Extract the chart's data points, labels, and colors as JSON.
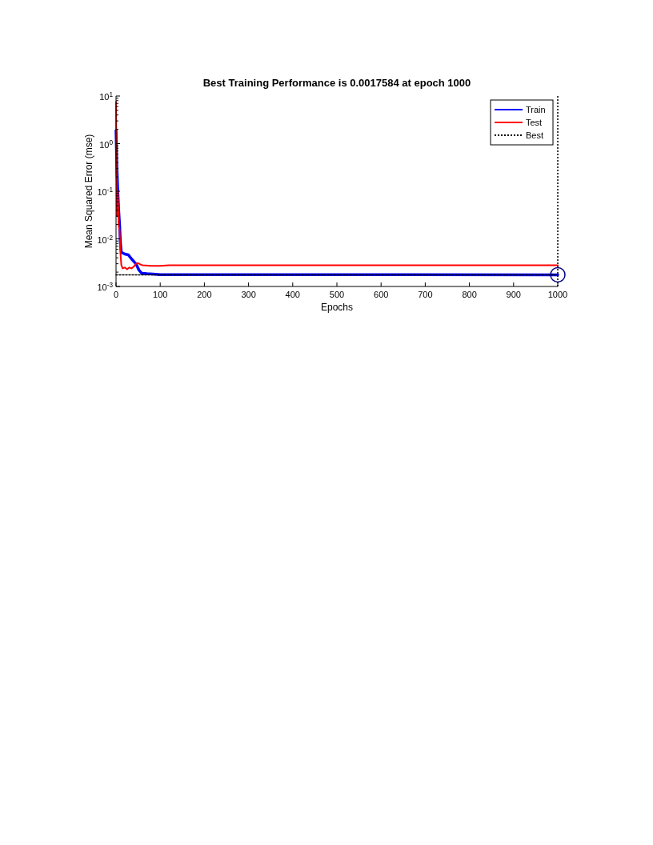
{
  "chart_data": {
    "type": "line",
    "title": "Best Training Performance is 0.0017584 at epoch 1000",
    "xlabel": "Epochs",
    "ylabel": "Mean Squared Error  (mse)",
    "xlim": [
      0,
      1000
    ],
    "xticks": [
      0,
      100,
      200,
      300,
      400,
      500,
      600,
      700,
      800,
      900,
      1000
    ],
    "ylim": [
      0.001,
      10
    ],
    "yticks": [
      {
        "value": 0.001,
        "label": "10$^{-3}$"
      },
      {
        "value": 0.01,
        "label": "10$^{-2}$"
      },
      {
        "value": 0.1,
        "label": "10$^{-1}$"
      },
      {
        "value": 1,
        "label": "10$^{0}$"
      },
      {
        "value": 10,
        "label": "10$^{1}$"
      }
    ],
    "log": "y",
    "grid": false,
    "legend": "top right",
    "series": [
      {
        "name": "Train",
        "color": "#0000ff",
        "line_style": "solid",
        "x": [
          0,
          2,
          4,
          6,
          8,
          10,
          12,
          20,
          28,
          35,
          45,
          52,
          58,
          70,
          90,
          100,
          1000
        ],
        "values": [
          1.9,
          0.3,
          0.1,
          0.04,
          0.02,
          0.008,
          0.0052,
          0.0048,
          0.0046,
          0.0038,
          0.003,
          0.0022,
          0.0019,
          0.00185,
          0.0018,
          0.00177,
          0.0017584
        ]
      },
      {
        "name": "Test",
        "color": "#ff0000",
        "line_style": "solid",
        "x": [
          0,
          2,
          4,
          6,
          8,
          10,
          12,
          15,
          20,
          25,
          30,
          35,
          40,
          45,
          50,
          55,
          60,
          80,
          100,
          120,
          1000
        ],
        "values": [
          7.5,
          0.03,
          0.1,
          0.02,
          0.015,
          0.005,
          0.0028,
          0.0024,
          0.0025,
          0.0023,
          0.0025,
          0.0024,
          0.0026,
          0.003,
          0.0031,
          0.0029,
          0.0028,
          0.0027,
          0.0027,
          0.0028,
          0.0028
        ]
      },
      {
        "name": "Best",
        "color": "#000000",
        "line_style": "dotted",
        "x": [
          0,
          1000
        ],
        "values": [
          0.0017584,
          0.0017584
        ]
      },
      {
        "type": "scatter",
        "color": "#000080",
        "marker": "circle",
        "x": [
          1000
        ],
        "values": [
          0.0017584
        ]
      }
    ],
    "ref_lines": [
      {
        "axis": "x",
        "value": 1000,
        "color": "#000000",
        "line_style": "dotted"
      }
    ]
  }
}
